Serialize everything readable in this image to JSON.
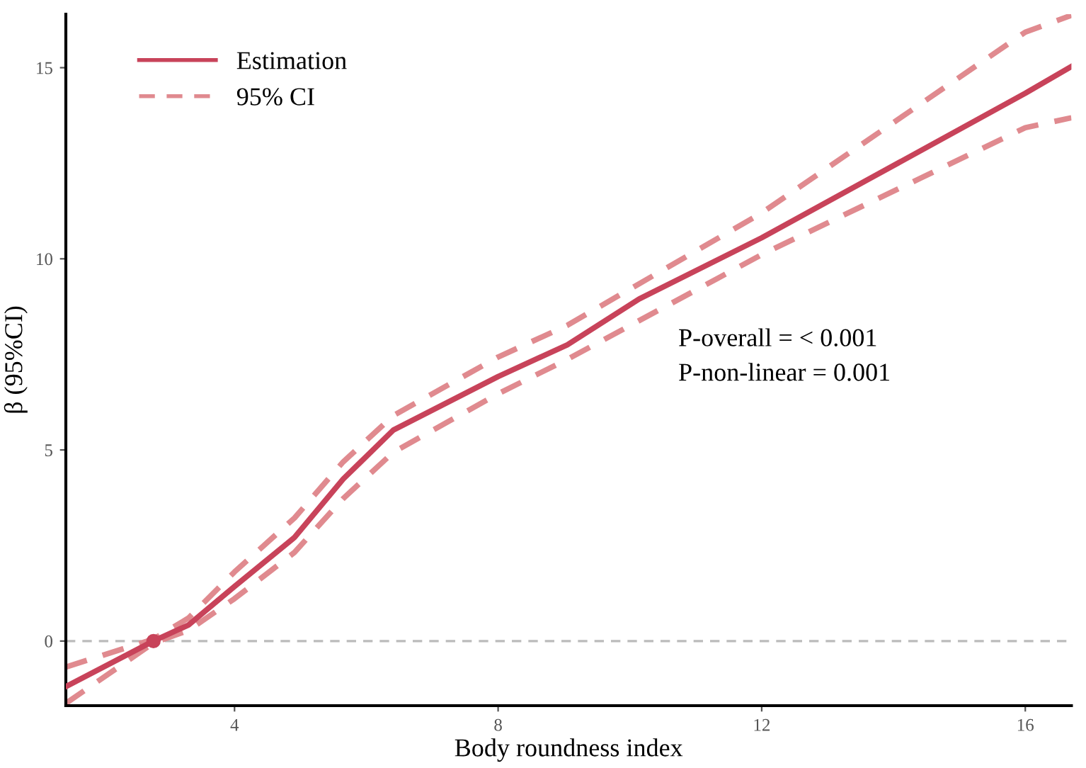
{
  "chart_data": {
    "type": "line",
    "xlabel": "Body roundness index",
    "ylabel": "β (95%CI)",
    "xlim": [
      1.44,
      16.7
    ],
    "xticks": [
      4,
      8,
      12,
      16
    ],
    "ylim": [
      -1.69,
      16.4
    ],
    "yticks": [
      0,
      5,
      10,
      15
    ],
    "series": [
      {
        "name": "Estimation",
        "color": "#c8435a",
        "line_style": "solid",
        "x": [
          1.44,
          2.77,
          3.3,
          4,
          4.91,
          5.65,
          6.41,
          8,
          9.05,
          10.14,
          12,
          16,
          16.7
        ],
        "values": [
          -1.19,
          0,
          0.42,
          1.43,
          2.71,
          4.24,
          5.52,
          6.92,
          7.75,
          8.95,
          10.55,
          14.33,
          15.03
        ]
      },
      {
        "name": "95% CI",
        "color": "#e08a8f",
        "line_style": "dashed",
        "x": [
          1.44,
          2.77,
          3.3,
          4,
          4.91,
          5.65,
          6.41,
          8,
          9.05,
          12,
          16,
          16.7
        ],
        "values": [
          -0.68,
          0.05,
          0.6,
          1.81,
          3.22,
          4.69,
          5.9,
          7.43,
          8.26,
          11.2,
          15.93,
          16.37
        ]
      },
      {
        "color": "#e08a8f",
        "line_style": "dashed",
        "x": [
          1.44,
          2.77,
          3.3,
          4,
          4.91,
          5.65,
          6.41,
          8,
          9.05,
          12,
          16,
          16.7
        ],
        "values": [
          -1.63,
          -0.05,
          0.28,
          1.11,
          2.32,
          3.73,
          4.94,
          6.47,
          7.37,
          10.11,
          13.43,
          13.69
        ]
      },
      {
        "type": "scatter",
        "color": "#c8435a",
        "x": [
          2.77
        ],
        "values": [
          0
        ]
      }
    ],
    "ref_lines": [
      {
        "axis": "y",
        "value": 0,
        "color": "#bbbbbb",
        "line_style": "dashed"
      }
    ],
    "annotations": [
      "P-overall = < 0.001",
      "P-non-linear = 0.001"
    ],
    "legend": "top left",
    "grid": false
  }
}
